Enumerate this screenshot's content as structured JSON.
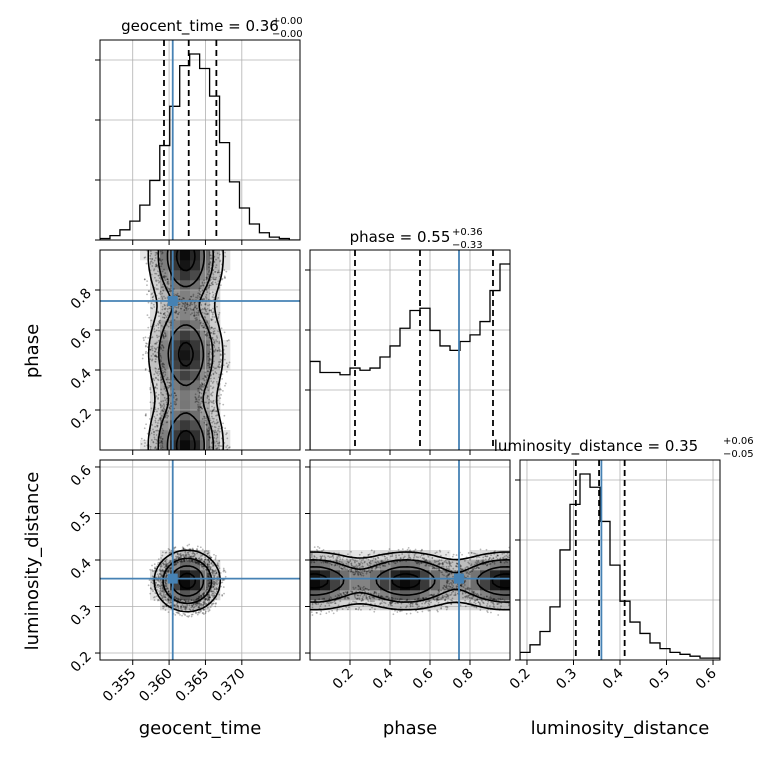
{
  "chart_data": {
    "type": "corner",
    "parameters": [
      "geocent_time",
      "phase",
      "luminosity_distance"
    ],
    "axis_labels": [
      "geocent_time",
      "phase",
      "luminosity_distance"
    ],
    "titles": [
      {
        "name": "geocent_time",
        "median": "0.36",
        "plus": "+0.00",
        "minus": "−0.00"
      },
      {
        "name": "phase",
        "median": "0.55",
        "plus": "+0.36",
        "minus": "−0.33"
      },
      {
        "name": "luminosity_distance",
        "median": "0.35",
        "plus": "+0.06",
        "minus": "−0.05"
      }
    ],
    "ranges": [
      [
        0.3505,
        0.378
      ],
      [
        0.0,
        1.0
      ],
      [
        0.185,
        0.615
      ]
    ],
    "ticks": [
      [
        0.355,
        0.36,
        0.365,
        0.37
      ],
      [
        0.2,
        0.4,
        0.6,
        0.8
      ],
      [
        0.2,
        0.3,
        0.4,
        0.5,
        0.6
      ]
    ],
    "tick_labels": [
      [
        "0.355",
        "0.360",
        "0.365",
        "0.370"
      ],
      [
        "0.2",
        "0.4",
        "0.6",
        "0.8"
      ],
      [
        "0.2",
        "0.3",
        "0.4",
        "0.5",
        "0.6"
      ]
    ],
    "truths": [
      0.3605,
      0.745,
      0.36
    ],
    "truth_color": "#4682b4",
    "quantiles": [
      [
        0.3593,
        0.3627,
        0.3665
      ],
      [
        0.225,
        0.55,
        0.915
      ],
      [
        0.305,
        0.355,
        0.41
      ]
    ],
    "histograms": [
      {
        "edges_start": 0.3505,
        "edges_step": 0.00137,
        "counts": [
          1,
          3,
          7,
          13,
          24,
          41,
          65,
          92,
          120,
          128,
          118,
          99,
          67,
          40,
          22,
          11,
          5,
          2,
          1,
          0
        ]
      },
      {
        "edges_start": 0.0,
        "edges_step": 0.05,
        "counts": [
          40,
          35,
          35,
          34,
          37,
          36,
          37,
          42,
          47,
          55,
          63,
          64,
          54,
          47,
          45,
          49,
          52,
          58,
          72,
          84
        ]
      },
      {
        "edges_start": 0.185,
        "edges_step": 0.0215,
        "counts": [
          4,
          8,
          15,
          28,
          58,
          82,
          98,
          91,
          73,
          50,
          31,
          20,
          14,
          9,
          6,
          4,
          3,
          2,
          1,
          1
        ]
      }
    ],
    "pairs": [
      {
        "x": 0,
        "y": 1,
        "x_center": 0.3623,
        "x_sigma": 0.0025,
        "y_modes": [
          0.97,
          0.48,
          0.02
        ],
        "y_weights": [
          1.0,
          0.95,
          1.0
        ]
      },
      {
        "x": 0,
        "y": 2,
        "x_center": 0.3625,
        "x_sigma": 0.0022,
        "y_center": 0.355,
        "y_sigma": 0.032
      },
      {
        "x": 1,
        "y": 2,
        "x_modes": [
          0.48,
          0.98,
          0.02
        ],
        "y_center": 0.355,
        "y_sigma": 0.03
      }
    ]
  }
}
